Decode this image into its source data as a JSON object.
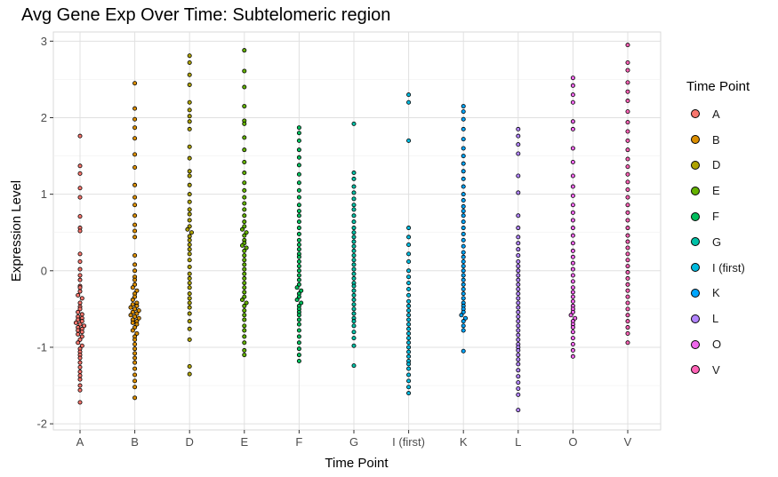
{
  "chart_data": {
    "type": "scatter",
    "subtype": "beeswarm",
    "title": "Avg Gene Exp Over Time: Subtelomeric region",
    "xlabel": "Time Point",
    "ylabel": "Expression Level",
    "ylim": [
      -2.08,
      3.12
    ],
    "yticks": [
      -2,
      -1,
      0,
      1,
      2,
      3
    ],
    "grid": true,
    "legend": {
      "title": "Time Point",
      "placement": "right",
      "items": [
        "A",
        "B",
        "D",
        "E",
        "F",
        "G",
        "I (first)",
        "K",
        "L",
        "O",
        "V"
      ]
    },
    "categories": [
      "A",
      "B",
      "D",
      "E",
      "F",
      "G",
      "I (first)",
      "K",
      "L",
      "O",
      "V"
    ],
    "colors": [
      "#F8766D",
      "#DB8E00",
      "#AEA200",
      "#64B200",
      "#00BD5C",
      "#00C1A7",
      "#00BADE",
      "#00A6FF",
      "#B385FF",
      "#EF67EB",
      "#FF63B6"
    ],
    "series": [
      {
        "name": "A",
        "values": [
          1.76,
          1.37,
          1.27,
          1.08,
          0.96,
          0.71,
          0.56,
          0.52,
          0.22,
          0.12,
          0.02,
          -0.06,
          -0.12,
          -0.2,
          -0.22,
          -0.27,
          -0.32,
          -0.36,
          -0.42,
          -0.47,
          -0.5,
          -0.54,
          -0.57,
          -0.6,
          -0.62,
          -0.64,
          -0.66,
          -0.68,
          -0.7,
          -0.72,
          -0.74,
          -0.76,
          -0.78,
          -0.8,
          -0.83,
          -0.86,
          -0.9,
          -0.94,
          -0.98,
          -1.02,
          -1.06,
          -1.1,
          -1.14,
          -1.2,
          -1.26,
          -1.32,
          -1.37,
          -1.42,
          -1.5,
          -1.56,
          -1.72
        ]
      },
      {
        "name": "B",
        "values": [
          2.45,
          2.12,
          1.98,
          1.87,
          1.73,
          1.52,
          1.35,
          1.12,
          0.96,
          0.86,
          0.72,
          0.6,
          0.52,
          0.44,
          0.2,
          0.08,
          0.0,
          -0.08,
          -0.12,
          -0.18,
          -0.22,
          -0.26,
          -0.3,
          -0.34,
          -0.38,
          -0.42,
          -0.44,
          -0.46,
          -0.48,
          -0.5,
          -0.52,
          -0.54,
          -0.56,
          -0.58,
          -0.6,
          -0.62,
          -0.64,
          -0.66,
          -0.68,
          -0.7,
          -0.74,
          -0.78,
          -0.82,
          -0.86,
          -0.9,
          -0.96,
          -1.02,
          -1.08,
          -1.14,
          -1.2,
          -1.28,
          -1.36,
          -1.44,
          -1.52,
          -1.66
        ]
      },
      {
        "name": "D",
        "values": [
          2.81,
          2.72,
          2.56,
          2.43,
          2.2,
          2.1,
          2.02,
          1.95,
          1.85,
          1.62,
          1.47,
          1.3,
          1.24,
          1.12,
          1.0,
          0.9,
          0.8,
          0.74,
          0.66,
          0.58,
          0.54,
          0.5,
          0.45,
          0.4,
          0.34,
          0.28,
          0.22,
          0.14,
          0.05,
          -0.04,
          -0.1,
          -0.16,
          -0.22,
          -0.3,
          -0.36,
          -0.42,
          -0.48,
          -0.56,
          -0.66,
          -0.76,
          -0.9,
          -1.25,
          -1.35
        ]
      },
      {
        "name": "E",
        "values": [
          2.88,
          2.61,
          2.4,
          2.15,
          1.96,
          1.92,
          1.74,
          1.58,
          1.42,
          1.28,
          1.15,
          1.05,
          0.96,
          0.88,
          0.8,
          0.72,
          0.64,
          0.58,
          0.54,
          0.5,
          0.46,
          0.4,
          0.36,
          0.33,
          0.3,
          0.26,
          0.2,
          0.14,
          0.08,
          0.02,
          -0.04,
          -0.1,
          -0.16,
          -0.22,
          -0.28,
          -0.34,
          -0.38,
          -0.42,
          -0.46,
          -0.52,
          -0.58,
          -0.64,
          -0.72,
          -0.78,
          -0.86,
          -0.94,
          -1.04,
          -1.1
        ]
      },
      {
        "name": "F",
        "values": [
          1.87,
          1.8,
          1.7,
          1.58,
          1.48,
          1.38,
          1.26,
          1.15,
          1.05,
          0.96,
          0.86,
          0.78,
          0.72,
          0.64,
          0.56,
          0.48,
          0.4,
          0.34,
          0.28,
          0.22,
          0.18,
          0.12,
          0.06,
          0.0,
          -0.06,
          -0.12,
          -0.18,
          -0.22,
          -0.26,
          -0.3,
          -0.34,
          -0.38,
          -0.42,
          -0.46,
          -0.5,
          -0.54,
          -0.58,
          -0.64,
          -0.7,
          -0.78,
          -0.86,
          -0.94,
          -1.02,
          -1.1,
          -1.18
        ]
      },
      {
        "name": "G",
        "values": [
          1.92,
          1.28,
          1.2,
          1.1,
          1.02,
          0.94,
          0.86,
          0.8,
          0.72,
          0.64,
          0.56,
          0.5,
          0.44,
          0.38,
          0.32,
          0.26,
          0.2,
          0.14,
          0.08,
          0.02,
          -0.04,
          -0.1,
          -0.16,
          -0.2,
          -0.26,
          -0.32,
          -0.38,
          -0.44,
          -0.5,
          -0.56,
          -0.62,
          -0.66,
          -0.72,
          -0.8,
          -0.88,
          -0.98,
          -1.24
        ]
      },
      {
        "name": "I (first)",
        "values": [
          2.3,
          2.2,
          1.7,
          0.56,
          0.44,
          0.34,
          0.22,
          0.12,
          0.0,
          -0.08,
          -0.16,
          -0.24,
          -0.32,
          -0.4,
          -0.46,
          -0.52,
          -0.58,
          -0.64,
          -0.7,
          -0.76,
          -0.82,
          -0.88,
          -0.94,
          -1.0,
          -1.06,
          -1.12,
          -1.18,
          -1.22,
          -1.28,
          -1.36,
          -1.44,
          -1.52,
          -1.6
        ]
      },
      {
        "name": "K",
        "values": [
          2.15,
          2.08,
          1.98,
          1.85,
          1.72,
          1.6,
          1.5,
          1.4,
          1.3,
          1.2,
          1.1,
          1.0,
          0.92,
          0.84,
          0.78,
          0.72,
          0.64,
          0.56,
          0.48,
          0.4,
          0.32,
          0.24,
          0.18,
          0.12,
          0.06,
          0.0,
          -0.06,
          -0.12,
          -0.18,
          -0.24,
          -0.3,
          -0.36,
          -0.42,
          -0.46,
          -0.5,
          -0.54,
          -0.58,
          -0.62,
          -0.66,
          -0.72,
          -0.78,
          -1.05
        ]
      },
      {
        "name": "L",
        "values": [
          1.85,
          1.76,
          1.65,
          1.53,
          1.24,
          1.02,
          0.72,
          0.56,
          0.44,
          0.36,
          0.28,
          0.2,
          0.12,
          0.06,
          0.0,
          -0.06,
          -0.12,
          -0.18,
          -0.24,
          -0.3,
          -0.36,
          -0.42,
          -0.48,
          -0.54,
          -0.6,
          -0.66,
          -0.72,
          -0.78,
          -0.84,
          -0.9,
          -0.96,
          -1.0,
          -1.04,
          -1.1,
          -1.16,
          -1.22,
          -1.3,
          -1.38,
          -1.46,
          -1.54,
          -1.62,
          -1.82
        ]
      },
      {
        "name": "O",
        "values": [
          2.52,
          2.42,
          2.3,
          2.2,
          1.95,
          1.85,
          1.6,
          1.42,
          1.24,
          1.1,
          0.98,
          0.86,
          0.76,
          0.66,
          0.56,
          0.46,
          0.36,
          0.26,
          0.18,
          0.1,
          0.02,
          -0.06,
          -0.14,
          -0.22,
          -0.28,
          -0.34,
          -0.4,
          -0.46,
          -0.5,
          -0.54,
          -0.58,
          -0.62,
          -0.66,
          -0.7,
          -0.74,
          -0.8,
          -0.88,
          -0.96,
          -1.04,
          -1.12
        ]
      },
      {
        "name": "V",
        "values": [
          2.95,
          2.72,
          2.62,
          2.46,
          2.34,
          2.22,
          2.08,
          1.94,
          1.82,
          1.7,
          1.58,
          1.46,
          1.36,
          1.26,
          1.16,
          1.06,
          0.96,
          0.86,
          0.76,
          0.66,
          0.56,
          0.46,
          0.38,
          0.3,
          0.22,
          0.14,
          0.06,
          -0.02,
          -0.1,
          -0.18,
          -0.26,
          -0.34,
          -0.42,
          -0.5,
          -0.58,
          -0.66,
          -0.74,
          -0.82,
          -0.94
        ]
      }
    ]
  }
}
